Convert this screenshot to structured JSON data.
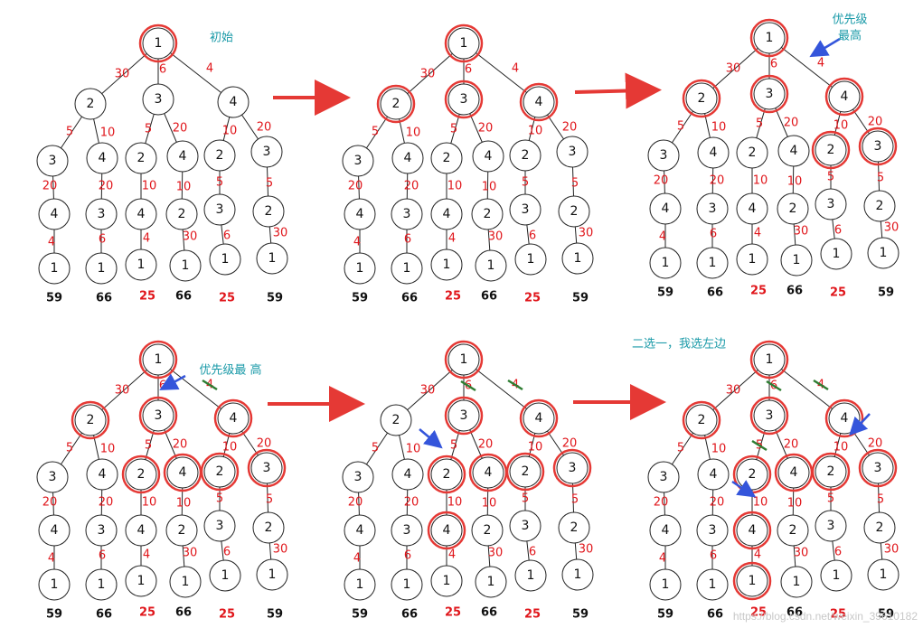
{
  "colors": {
    "edge_label": "#e0161b",
    "highlight": "#e53935",
    "annotation": "#1a9aa8",
    "arrow_main": "#e53935",
    "arrow_pointer": "#3455db",
    "strike": "#2e7d32",
    "sum_black": "#111111",
    "sum_red": "#e0161b"
  },
  "panels": [
    {
      "id": "panel-1",
      "annotation": "初始",
      "sums": [
        "59",
        "66",
        "25",
        "66",
        "25",
        "59"
      ],
      "red_sums": [
        2,
        4
      ],
      "highlighted": [
        "root"
      ],
      "pointers": [],
      "struck_edges": []
    },
    {
      "id": "panel-2",
      "annotation": "",
      "sums": [
        "59",
        "66",
        "25",
        "66",
        "25",
        "59"
      ],
      "red_sums": [
        2,
        4
      ],
      "highlighted": [
        "root",
        "L1a",
        "L1b",
        "L1c"
      ],
      "pointers": [],
      "struck_edges": []
    },
    {
      "id": "panel-3",
      "annotation": "优先级\n最高",
      "sums": [
        "59",
        "66",
        "25",
        "66",
        "25",
        "59"
      ],
      "red_sums": [
        2,
        4
      ],
      "highlighted": [
        "root",
        "L1a",
        "L1b",
        "L1c",
        "L2e",
        "L2f"
      ],
      "pointers": [
        "edge-root-c"
      ],
      "struck_edges": []
    },
    {
      "id": "panel-4",
      "annotation": "优先级最 高",
      "sums": [
        "59",
        "66",
        "25",
        "66",
        "25",
        "59"
      ],
      "red_sums": [
        2,
        4
      ],
      "highlighted": [
        "root",
        "L1a",
        "L1b",
        "L1c",
        "L2c",
        "L2d",
        "L2e",
        "L2f"
      ],
      "pointers": [
        "edge-root-b"
      ],
      "struck_edges": [
        "root-c"
      ]
    },
    {
      "id": "panel-5",
      "annotation": "",
      "sums": [
        "59",
        "66",
        "25",
        "66",
        "25",
        "59"
      ],
      "red_sums": [
        2,
        4
      ],
      "highlighted": [
        "root",
        "L1b",
        "L1c",
        "L2c",
        "L2d",
        "L2e",
        "L2f",
        "L3c"
      ],
      "pointers": [
        "edge-b-c"
      ],
      "struck_edges": [
        "root-b",
        "root-c"
      ]
    },
    {
      "id": "panel-6",
      "annotation": "二选一，我选左边",
      "sums": [
        "59",
        "66",
        "25",
        "66",
        "25",
        "59"
      ],
      "red_sums": [
        2,
        4
      ],
      "highlighted": [
        "root",
        "L1a",
        "L1b",
        "L1c",
        "L2c",
        "L2d",
        "L2e",
        "L2f",
        "L3c",
        "L4c"
      ],
      "pointers": [
        "edge-c-c3",
        "edge-c-f"
      ],
      "struck_edges": [
        "root-b",
        "root-c",
        "b-c"
      ]
    }
  ],
  "tree": {
    "root": "1",
    "level1": [
      {
        "label": "2",
        "edge": "30"
      },
      {
        "label": "3",
        "edge": "6"
      },
      {
        "label": "4",
        "edge": "4"
      }
    ],
    "level2": [
      {
        "label": "3",
        "edge": "5",
        "parent": 0
      },
      {
        "label": "4",
        "edge": "10",
        "parent": 0
      },
      {
        "label": "2",
        "edge": "5",
        "parent": 1
      },
      {
        "label": "4",
        "edge": "20",
        "parent": 1
      },
      {
        "label": "2",
        "edge": "10",
        "parent": 2
      },
      {
        "label": "3",
        "edge": "20",
        "parent": 2
      }
    ],
    "level3": [
      {
        "label": "4",
        "edge": "20"
      },
      {
        "label": "3",
        "edge": "20"
      },
      {
        "label": "4",
        "edge": "10"
      },
      {
        "label": "2",
        "edge": "10"
      },
      {
        "label": "3",
        "edge": "5"
      },
      {
        "label": "2",
        "edge": "5"
      }
    ],
    "level4": [
      {
        "label": "1",
        "edge": "4"
      },
      {
        "label": "1",
        "edge": "6"
      },
      {
        "label": "1",
        "edge": "4"
      },
      {
        "label": "1",
        "edge": "30"
      },
      {
        "label": "1",
        "edge": "6"
      },
      {
        "label": "1",
        "edge": "30"
      }
    ]
  },
  "watermark": "https://blog.csdn.net/weixin_39610182"
}
